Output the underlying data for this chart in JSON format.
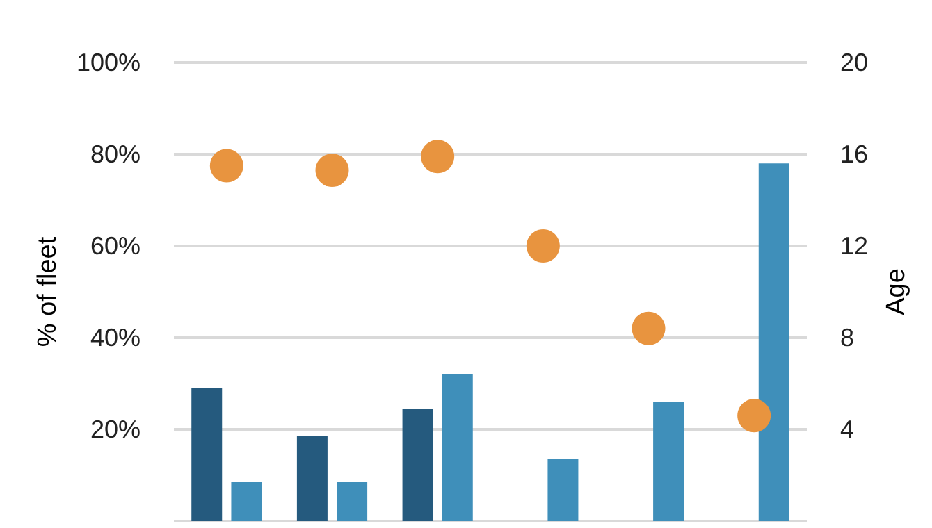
{
  "chart_data": {
    "type": "bar",
    "ylabel": "% of fleet",
    "y2label": "Age",
    "categories": [
      null,
      null,
      null,
      null,
      null,
      null
    ],
    "series": [
      {
        "color": "#255a7e",
        "values": [
          29,
          18.5,
          24.5,
          null,
          null,
          null
        ]
      },
      {
        "color": "#3f8fba",
        "values": [
          8.5,
          8.5,
          32,
          13.5,
          26,
          78
        ]
      },
      {
        "type": "scatter",
        "axis": "y2",
        "color": "#e8943f",
        "marker": "circle",
        "values": [
          15.5,
          15.3,
          15.9,
          12,
          8.4,
          4.6
        ]
      }
    ],
    "ylim": [
      0,
      100
    ],
    "yticks": [
      {
        "value": 0,
        "label": null
      },
      {
        "value": 20,
        "label": "20%"
      },
      {
        "value": 40,
        "label": "40%"
      },
      {
        "value": 60,
        "label": "60%"
      },
      {
        "value": 80,
        "label": "80%"
      },
      {
        "value": 100,
        "label": "100%"
      }
    ],
    "y2lim": [
      0,
      20
    ],
    "y2ticks": [
      4,
      8,
      12,
      16,
      20
    ],
    "grid": "y",
    "tick_labels": "y"
  }
}
